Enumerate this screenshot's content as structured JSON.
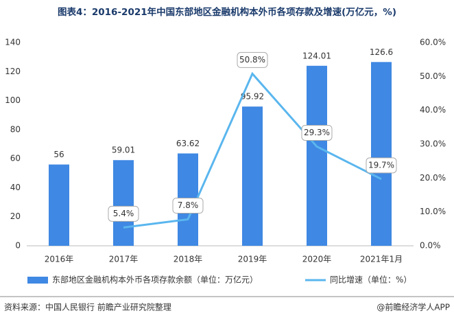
{
  "chart_data": {
    "type": "bar_line",
    "title": "图表4：2016-2021年中国东部地区金融机构本外币各项存款及增速(万亿元，%)",
    "categories": [
      "2016年",
      "2017年",
      "2018年",
      "2019年",
      "2020年",
      "2021年1月"
    ],
    "series": [
      {
        "name": "东部地区金融机构本外币各项存款余额（单位：万亿元）",
        "type": "bar",
        "color": "#3f88e3",
        "values": [
          56,
          59.01,
          63.62,
          95.92,
          124.01,
          126.6
        ]
      },
      {
        "name": "同比增速（单位：%）",
        "type": "line",
        "axis": "y2",
        "color": "#5ab6ee",
        "values": [
          null,
          5.4,
          7.8,
          50.8,
          29.3,
          19.7
        ],
        "value_labels": [
          null,
          "5.4%",
          "7.8%",
          "50.8%",
          "29.3%",
          "19.7%"
        ]
      }
    ],
    "ylim": [
      0,
      140
    ],
    "yticks": [
      0,
      20,
      40,
      60,
      80,
      100,
      120,
      140
    ],
    "y2lim": [
      0,
      60
    ],
    "y2ticks": [
      {
        "value": 0,
        "label": "0.0%"
      },
      {
        "value": 10,
        "label": "10.0%"
      },
      {
        "value": 20,
        "label": "20.0%"
      },
      {
        "value": 30,
        "label": "30.0%"
      },
      {
        "value": 40,
        "label": "40.0%"
      },
      {
        "value": 50,
        "label": "50.0%"
      },
      {
        "value": 60,
        "label": "60.0%"
      }
    ],
    "source": "资料来源：中国人民银行 前瞻产业研究院整理",
    "credit": "@前瞻经济学人APP"
  }
}
